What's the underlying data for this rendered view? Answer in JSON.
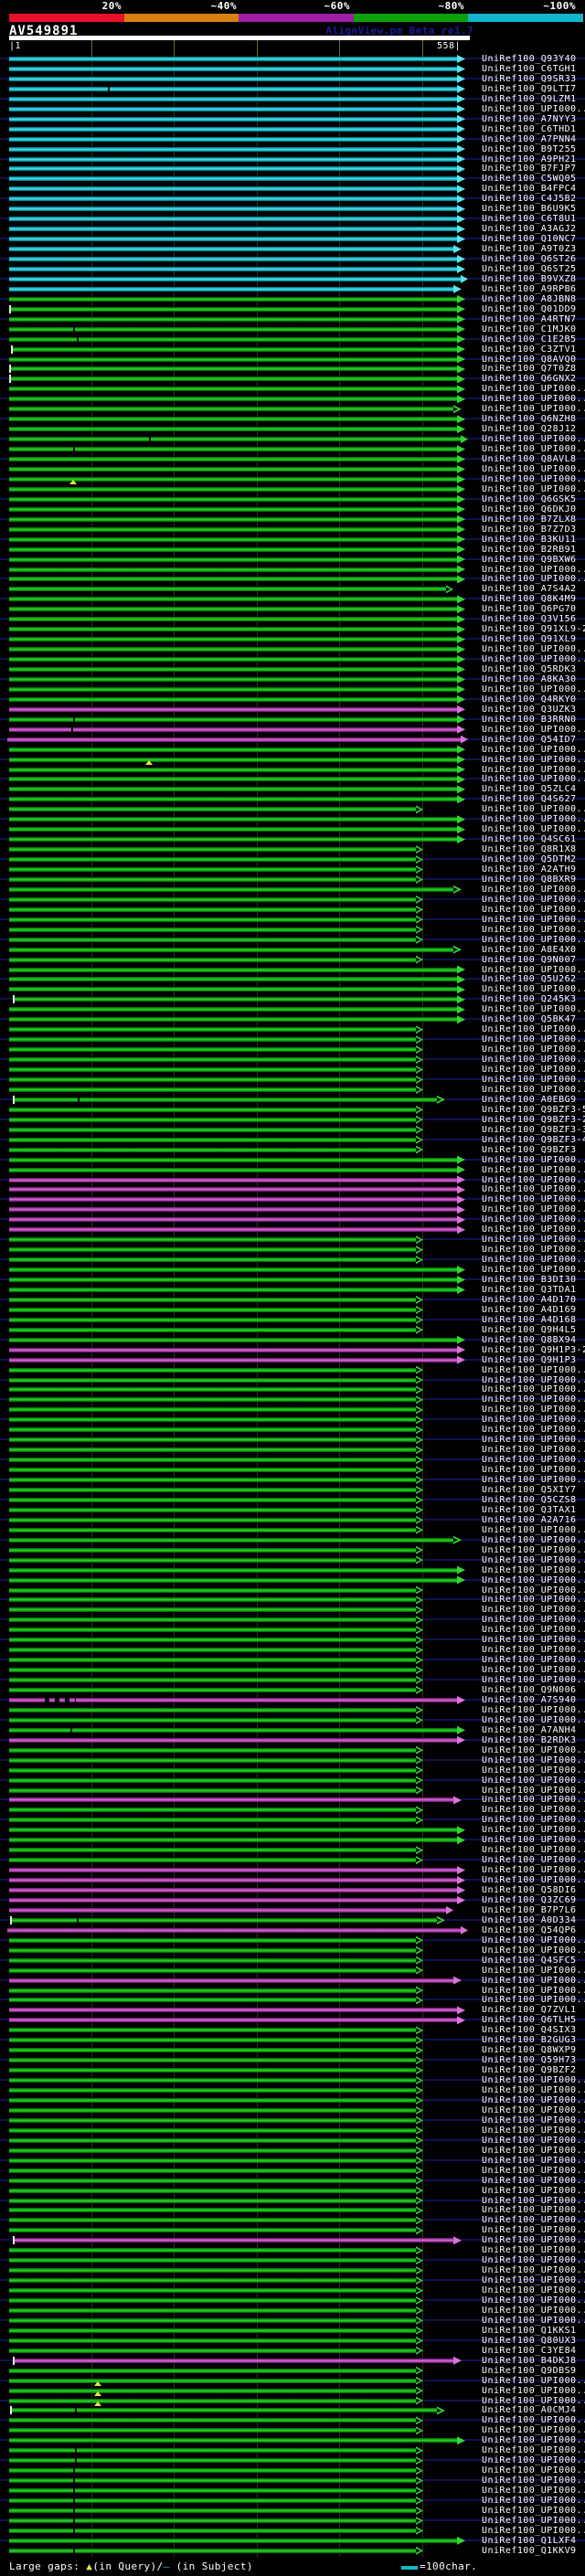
{
  "header": {
    "query_id": "AV549891",
    "watermark": "AlignView.pm Beta re1.7",
    "scale_labels": [
      "20%",
      "~40%",
      "~60%",
      "~80%",
      "~100%"
    ],
    "scale_colors": [
      "#e8102a",
      "#d6820c",
      "#9c1fa5",
      "#0aa00a",
      "#10b6cc"
    ],
    "ruler_start": "|1",
    "ruler_end": "558|"
  },
  "footer": {
    "gaps_prefix": "Large gaps: ",
    "gap_query_symbol": "▲",
    "gap_query_text": "(in Query)/",
    "gap_subject_symbol": "–",
    "gap_subject_text": " (in Subject)",
    "scalebar_text": "=100char."
  },
  "chart_data": {
    "type": "alignment-coverage",
    "title": "AV549891",
    "x_domain": [
      1,
      558
    ],
    "x_ticks": [
      100,
      200,
      300,
      400,
      500
    ],
    "identity_buckets": {
      "labels": [
        "20%",
        "~40%",
        "~60%",
        "~80%",
        "~100%"
      ],
      "colors": [
        "#e8102a",
        "#d6820c",
        "#9c1fa5",
        "#0aa00a",
        "#10b6cc"
      ]
    },
    "label_prefix": "UniRef100_",
    "colors": {
      "c": {
        "lo": "#07626e",
        "main": "#12b9c6",
        "hi": "#5ae4ec"
      },
      "g": {
        "lo": "#055805",
        "main": "#0cab0c",
        "hi": "#35d435"
      },
      "m": {
        "lo": "#5c165c",
        "main": "#ad3cad",
        "hi": "#d873d8"
      }
    },
    "length_classes": {
      "x": [
        504,
        512
      ],
      "f": [
        500,
        509
      ],
      "n": [
        496,
        505
      ],
      "m": [
        488,
        496
      ],
      "d": [
        478,
        487
      ],
      "s": [
        455,
        463
      ]
    },
    "rows": [
      [
        "Q93Y40",
        "c",
        "f"
      ],
      [
        "C6TGH1",
        "c",
        "f"
      ],
      [
        "Q9SR33",
        "c",
        "f"
      ],
      [
        "Q9LTI7",
        "c",
        "f",
        10,
        "c",
        118
      ],
      [
        "Q9LZM1",
        "c",
        "f"
      ],
      [
        "UPI000..",
        "c",
        "f"
      ],
      [
        "A7NYY3",
        "c",
        "f"
      ],
      [
        "C6THD1",
        "c",
        "f"
      ],
      [
        "A7PNN4",
        "c",
        "f"
      ],
      [
        "B9T255",
        "c",
        "f"
      ],
      [
        "A9PH21",
        "c",
        "f"
      ],
      [
        "B7FJP7",
        "c",
        "f"
      ],
      [
        "C5WQ05",
        "c",
        "f"
      ],
      [
        "B4FPC4",
        "c",
        "f"
      ],
      [
        "C4J5B2",
        "c",
        "f"
      ],
      [
        "B6U9K5",
        "c",
        "f"
      ],
      [
        "C6T8U1",
        "c",
        "f"
      ],
      [
        "A3AGJ2",
        "c",
        "f"
      ],
      [
        "Q10NC7",
        "c",
        "f"
      ],
      [
        "A9T0Z3",
        "c",
        "n"
      ],
      [
        "Q6ST26",
        "c",
        "f"
      ],
      [
        "Q6ST25",
        "c",
        "f"
      ],
      [
        "B9VXZ8",
        "c",
        "x"
      ],
      [
        "A9RPB6",
        "c",
        "n"
      ],
      [
        "A8JBN8",
        "g",
        "f"
      ],
      [
        "Q01DD9",
        "g",
        "f",
        12
      ],
      [
        "A4RTN7",
        "g",
        "f"
      ],
      [
        "C1MJK0",
        "g",
        "f",
        10,
        "c",
        80
      ],
      [
        "C1E2B5",
        "g",
        "f",
        10,
        "c",
        84
      ],
      [
        "C3ZTV1",
        "g",
        "f",
        14
      ],
      [
        "Q8AVQ0",
        "g",
        "f"
      ],
      [
        "Q7T0Z8",
        "g",
        "f",
        12
      ],
      [
        "Q6GNX2",
        "g",
        "f",
        12
      ],
      [
        "UPI000..",
        "g",
        "f"
      ],
      [
        "UPI000..",
        "g",
        "f"
      ],
      [
        "UPI000..",
        "g",
        "n"
      ],
      [
        "Q6NZH8",
        "g",
        "f"
      ],
      [
        "Q28J12",
        "g",
        "f"
      ],
      [
        "UPI000..",
        "g",
        "x",
        10,
        "c",
        163
      ],
      [
        "UPI000..",
        "g",
        "f",
        10,
        "c",
        80
      ],
      [
        "Q8AVL8",
        "g",
        "f"
      ],
      [
        "UPI000..",
        "g",
        "f"
      ],
      [
        "UPI000..",
        "g",
        "f",
        10,
        "t",
        80
      ],
      [
        "UPI000..",
        "g",
        "f"
      ],
      [
        "Q6GSK5",
        "g",
        "f"
      ],
      [
        "Q6DKJ0",
        "g",
        "f"
      ],
      [
        "B7ZLX8",
        "g",
        "f"
      ],
      [
        "B7Z7D3",
        "g",
        "f"
      ],
      [
        "B3KU11",
        "g",
        "f"
      ],
      [
        "B2RB91",
        "g",
        "f"
      ],
      [
        "Q9BXW6",
        "g",
        "f"
      ],
      [
        "UPI000..",
        "g",
        "f"
      ],
      [
        "UPI000..",
        "g",
        "f"
      ],
      [
        "A7S4A2",
        "g",
        "m"
      ],
      [
        "Q8K4M9",
        "g",
        "f"
      ],
      [
        "Q6PG70",
        "g",
        "f"
      ],
      [
        "Q3V156",
        "g",
        "f"
      ],
      [
        "Q91XL9-2",
        "g",
        "f"
      ],
      [
        "Q91XL9",
        "g",
        "f"
      ],
      [
        "UPI000..",
        "g",
        "f"
      ],
      [
        "UPI000..",
        "g",
        "f"
      ],
      [
        "Q5RDK3",
        "g",
        "f"
      ],
      [
        "A8KA30",
        "g",
        "f"
      ],
      [
        "UPI000..",
        "g",
        "f"
      ],
      [
        "Q4RKY0",
        "g",
        "f"
      ],
      [
        "Q3UZK3",
        "m",
        "f"
      ],
      [
        "B3RRN0",
        "g",
        "f",
        10,
        "c",
        80
      ],
      [
        "UPI000..",
        "m",
        "f",
        10,
        "c",
        78
      ],
      [
        "Q54ID7",
        "m",
        "x",
        8
      ],
      [
        "UPI000..",
        "g",
        "f"
      ],
      [
        "UPI000..",
        "g",
        "f",
        10,
        "t",
        163
      ],
      [
        "UPI000..",
        "g",
        "f"
      ],
      [
        "UPI000..",
        "g",
        "f"
      ],
      [
        "Q5ZLC4",
        "g",
        "f"
      ],
      [
        "Q4S627",
        "g",
        "f"
      ],
      [
        "UPI000..",
        "g",
        "s"
      ],
      [
        "UPI000..",
        "g",
        "f"
      ],
      [
        "UPI000..",
        "g",
        "f"
      ],
      [
        "Q4SC61",
        "g",
        "f"
      ],
      [
        "Q8R1X8",
        "g",
        "s"
      ],
      [
        "Q5DTM2",
        "g",
        "s"
      ],
      [
        "A2ATH9",
        "g",
        "s"
      ],
      [
        "Q8BXR9",
        "g",
        "s"
      ],
      [
        "UPI000..",
        "g",
        "n"
      ],
      [
        "UPI000..",
        "g",
        "s"
      ],
      [
        "UPI000..",
        "g",
        "s"
      ],
      [
        "UPI000..",
        "g",
        "s"
      ],
      [
        "UPI000..",
        "g",
        "s"
      ],
      [
        "UPI000..",
        "g",
        "s"
      ],
      [
        "A8E4X0",
        "g",
        "n"
      ],
      [
        "Q9N007",
        "g",
        "s"
      ],
      [
        "UPI000..",
        "g",
        "f"
      ],
      [
        "Q5U262",
        "g",
        "f"
      ],
      [
        "UPI000..",
        "g",
        "f"
      ],
      [
        "Q245K3",
        "g",
        "f",
        16
      ],
      [
        "UPI000..",
        "g",
        "f"
      ],
      [
        "Q5BK47",
        "g",
        "f"
      ],
      [
        "UPI000..",
        "g",
        "s"
      ],
      [
        "UPI000..",
        "g",
        "s"
      ],
      [
        "UPI000..",
        "g",
        "s"
      ],
      [
        "UPI000..",
        "g",
        "s"
      ],
      [
        "UPI000..",
        "g",
        "s"
      ],
      [
        "UPI000..",
        "g",
        "s"
      ],
      [
        "UPI000..",
        "g",
        "s"
      ],
      [
        "A0EBG9",
        "g",
        "d",
        16,
        "c",
        85
      ],
      [
        "Q9BZF3-5",
        "g",
        "s"
      ],
      [
        "Q9BZF3-2",
        "g",
        "s"
      ],
      [
        "Q9BZF3-3",
        "g",
        "s"
      ],
      [
        "Q9BZF3-4",
        "g",
        "s"
      ],
      [
        "Q9BZF3",
        "g",
        "s"
      ],
      [
        "UPI000..",
        "g",
        "f"
      ],
      [
        "UPI000..",
        "g",
        "f"
      ],
      [
        "UPI000..",
        "m",
        "f"
      ],
      [
        "UPI000..",
        "m",
        "f"
      ],
      [
        "UPI000..",
        "m",
        "f"
      ],
      [
        "UPI000..",
        "m",
        "f"
      ],
      [
        "UPI000..",
        "m",
        "f"
      ],
      [
        "UPI000..",
        "m",
        "f"
      ],
      [
        "UPI000..",
        "g",
        "s"
      ],
      [
        "UPI000..",
        "g",
        "s"
      ],
      [
        "UPI000..",
        "g",
        "s"
      ],
      [
        "UPI000..",
        "g",
        "f"
      ],
      [
        "B3DI30",
        "g",
        "f"
      ],
      [
        "Q3TDA1",
        "g",
        "f"
      ],
      [
        "A4D170",
        "g",
        "s"
      ],
      [
        "A4D169",
        "g",
        "s"
      ],
      [
        "A4D168",
        "g",
        "s"
      ],
      [
        "Q9H4L5",
        "g",
        "s"
      ],
      [
        "Q8BX94",
        "g",
        "f"
      ],
      [
        "Q9H1P3-2",
        "m",
        "f"
      ],
      [
        "Q9H1P3",
        "m",
        "f"
      ],
      [
        "UPI000..",
        "g",
        "s"
      ],
      [
        "UPI000..",
        "g",
        "s"
      ],
      [
        "UPI000..",
        "g",
        "s"
      ],
      [
        "UPI000..",
        "g",
        "s"
      ],
      [
        "UPI000..",
        "g",
        "s"
      ],
      [
        "UPI000..",
        "g",
        "s"
      ],
      [
        "UPI000..",
        "g",
        "s"
      ],
      [
        "UPI000..",
        "g",
        "s"
      ],
      [
        "UPI000..",
        "g",
        "s"
      ],
      [
        "UPI000..",
        "g",
        "s"
      ],
      [
        "UPI000..",
        "g",
        "s"
      ],
      [
        "UPI000..",
        "g",
        "s"
      ],
      [
        "Q5XIY7",
        "g",
        "s"
      ],
      [
        "Q5CZS8",
        "g",
        "s"
      ],
      [
        "Q3TAX1",
        "g",
        "s"
      ],
      [
        "A2A716",
        "g",
        "s"
      ],
      [
        "UPI000..",
        "g",
        "s"
      ],
      [
        "UPI000..",
        "g",
        "n"
      ],
      [
        "UPI000..",
        "g",
        "s"
      ],
      [
        "UPI000..",
        "g",
        "s"
      ],
      [
        "UPI000..",
        "g",
        "f"
      ],
      [
        "UPI000..",
        "g",
        "f"
      ],
      [
        "UPI000..",
        "g",
        "s"
      ],
      [
        "UPI000..",
        "g",
        "s"
      ],
      [
        "UPI000..",
        "g",
        "s"
      ],
      [
        "UPI000..",
        "g",
        "s"
      ],
      [
        "UPI000..",
        "g",
        "s"
      ],
      [
        "UPI000..",
        "g",
        "s"
      ],
      [
        "UPI000..",
        "g",
        "s"
      ],
      [
        "UPI000..",
        "g",
        "s"
      ],
      [
        "UPI000..",
        "g",
        "s"
      ],
      [
        "UPI000..",
        "g",
        "s"
      ],
      [
        "Q9N006",
        "g",
        "s"
      ],
      [
        "A7S940",
        "m",
        "f",
        10,
        "d",
        49
      ],
      [
        "UPI000..",
        "g",
        "s"
      ],
      [
        "UPI000..",
        "g",
        "s"
      ],
      [
        "A7ANH4",
        "g",
        "f",
        10,
        "c",
        77
      ],
      [
        "B2RDK3",
        "m",
        "f"
      ],
      [
        "UPI000..",
        "g",
        "s"
      ],
      [
        "UPI000..",
        "g",
        "s"
      ],
      [
        "UPI000..",
        "g",
        "s"
      ],
      [
        "UPI000..",
        "g",
        "s"
      ],
      [
        "UPI000..",
        "g",
        "s"
      ],
      [
        "UPI000..",
        "m",
        "n"
      ],
      [
        "UPI000..",
        "g",
        "s"
      ],
      [
        "UPI000..",
        "g",
        "s"
      ],
      [
        "UPI000..",
        "g",
        "f"
      ],
      [
        "UPI000..",
        "g",
        "f"
      ],
      [
        "UPI000..",
        "g",
        "s"
      ],
      [
        "UPI000..",
        "g",
        "s"
      ],
      [
        "UPI000..",
        "m",
        "f"
      ],
      [
        "UPI000..",
        "m",
        "f"
      ],
      [
        "Q58DI6",
        "m",
        "f"
      ],
      [
        "Q3ZC69",
        "m",
        "f"
      ],
      [
        "B7P7L6",
        "m",
        "m"
      ],
      [
        "A0D334",
        "g",
        "d",
        13,
        "c",
        84
      ],
      [
        "Q54QP6",
        "m",
        "x",
        8
      ],
      [
        "UPI000..",
        "g",
        "s"
      ],
      [
        "UPI000..",
        "g",
        "s"
      ],
      [
        "Q4SFC5",
        "g",
        "s"
      ],
      [
        "UPI000..",
        "g",
        "s"
      ],
      [
        "UPI000..",
        "m",
        "n"
      ],
      [
        "UPI000..",
        "g",
        "s"
      ],
      [
        "UPI000..",
        "g",
        "s"
      ],
      [
        "Q7ZVL1",
        "m",
        "f"
      ],
      [
        "Q6TLH5",
        "m",
        "f"
      ],
      [
        "Q4SIX3",
        "g",
        "s"
      ],
      [
        "B2GUG3",
        "g",
        "s"
      ],
      [
        "Q8WXP9",
        "g",
        "s"
      ],
      [
        "Q59H73",
        "g",
        "s"
      ],
      [
        "Q9BZF2",
        "g",
        "s"
      ],
      [
        "UPI000..",
        "g",
        "s"
      ],
      [
        "UPI000..",
        "g",
        "s"
      ],
      [
        "UPI000..",
        "g",
        "s"
      ],
      [
        "UPI000..",
        "g",
        "s"
      ],
      [
        "UPI000..",
        "g",
        "s"
      ],
      [
        "UPI000..",
        "g",
        "s"
      ],
      [
        "UPI000..",
        "g",
        "s"
      ],
      [
        "UPI000..",
        "g",
        "s"
      ],
      [
        "UPI000..",
        "g",
        "s"
      ],
      [
        "UPI000..",
        "g",
        "s"
      ],
      [
        "UPI000..",
        "g",
        "s"
      ],
      [
        "UPI000..",
        "g",
        "s"
      ],
      [
        "UPI000..",
        "g",
        "s"
      ],
      [
        "UPI000..",
        "g",
        "s"
      ],
      [
        "UPI000..",
        "g",
        "s"
      ],
      [
        "UPI000..",
        "g",
        "s"
      ],
      [
        "UPI000..",
        "m",
        "n",
        16
      ],
      [
        "UPI000..",
        "g",
        "s"
      ],
      [
        "UPI000..",
        "g",
        "s"
      ],
      [
        "UPI000..",
        "g",
        "s"
      ],
      [
        "UPI000..",
        "g",
        "s"
      ],
      [
        "UPI000..",
        "g",
        "s"
      ],
      [
        "UPI000..",
        "g",
        "s"
      ],
      [
        "UPI000..",
        "g",
        "s"
      ],
      [
        "UPI000..",
        "g",
        "s"
      ],
      [
        "Q1KKS1",
        "g",
        "s"
      ],
      [
        "Q80UX3",
        "g",
        "s"
      ],
      [
        "C3YE84",
        "g",
        "s"
      ],
      [
        "B4DKJ8",
        "m",
        "n",
        16
      ],
      [
        "Q9DBS9",
        "g",
        "s"
      ],
      [
        "UPI000..",
        "g",
        "s",
        10,
        "t",
        107
      ],
      [
        "UPI000..",
        "g",
        "s",
        10,
        "t",
        107
      ],
      [
        "UPI000..",
        "g",
        "s",
        10,
        "t",
        107
      ],
      [
        "A0CMJ4",
        "g",
        "d",
        13,
        "c",
        82
      ],
      [
        "UPI000..",
        "g",
        "s"
      ],
      [
        "UPI000..",
        "g",
        "s"
      ],
      [
        "UPI000..",
        "g",
        "f"
      ],
      [
        "UPI000..",
        "g",
        "s",
        10,
        "c",
        82
      ],
      [
        "UPI000..",
        "g",
        "s",
        10,
        "c",
        82
      ],
      [
        "UPI000..",
        "g",
        "s",
        10,
        "c",
        80
      ],
      [
        "UPI000..",
        "g",
        "s",
        10,
        "c",
        80
      ],
      [
        "UPI000..",
        "g",
        "s",
        10,
        "c",
        80
      ],
      [
        "UPI000..",
        "g",
        "s",
        10,
        "c",
        80
      ],
      [
        "UPI000..",
        "g",
        "s",
        10,
        "c",
        80
      ],
      [
        "UPI000..",
        "g",
        "s",
        10,
        "c",
        80
      ],
      [
        "UPI000..",
        "g",
        "s",
        10,
        "c",
        80
      ],
      [
        "Q1LXF4",
        "g",
        "f"
      ],
      [
        "Q1KKV9",
        "g",
        "s",
        10,
        "c",
        80
      ]
    ]
  }
}
